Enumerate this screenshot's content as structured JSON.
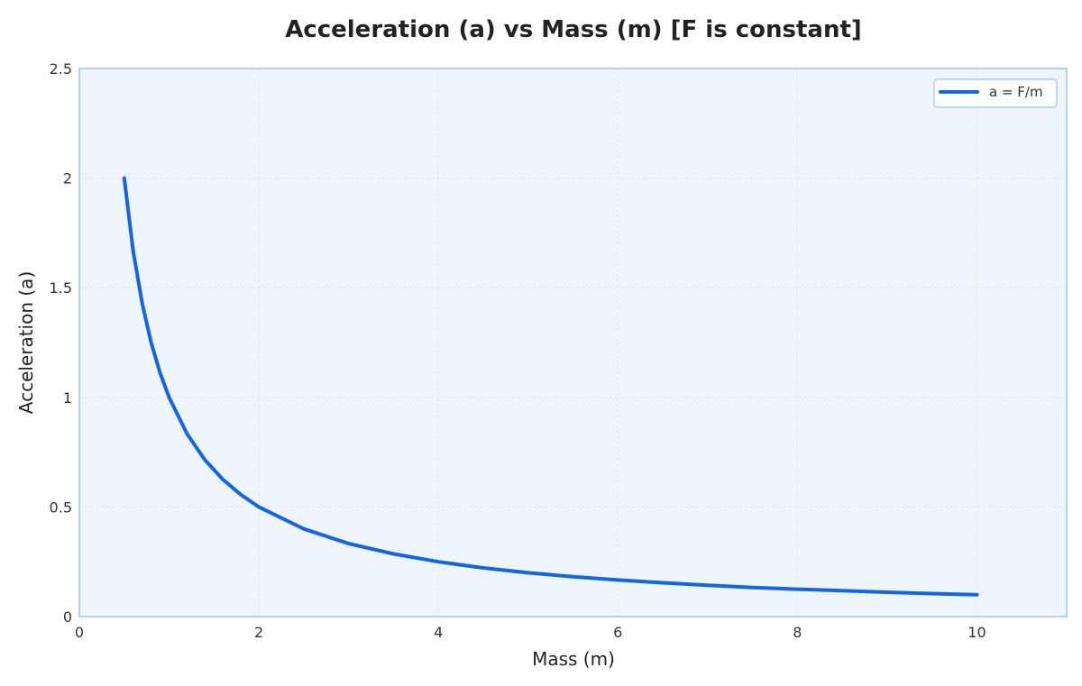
{
  "chart_data": {
    "type": "line",
    "title": "Acceleration (a) vs Mass (m) [F is constant]",
    "xlabel": "Mass (m)",
    "ylabel": "Acceleration (a)",
    "xlim": [
      0,
      11
    ],
    "ylim": [
      0,
      2.5
    ],
    "x_ticks": [
      0,
      2,
      4,
      6,
      8,
      10
    ],
    "y_ticks": [
      0,
      0.5,
      1,
      1.5,
      2,
      2.5
    ],
    "x_tick_labels": [
      "0",
      "2",
      "4",
      "6",
      "8",
      "10"
    ],
    "y_tick_labels": [
      "0",
      "0.5",
      "1",
      "1.5",
      "2",
      "2.5"
    ],
    "grid": true,
    "legend_position": "top-right",
    "series": [
      {
        "name": "a = F/m",
        "color": "#1565e0",
        "x": [
          0.5,
          0.6,
          0.7,
          0.8,
          0.9,
          1.0,
          1.2,
          1.4,
          1.6,
          1.8,
          2.0,
          2.5,
          3.0,
          3.5,
          4.0,
          4.5,
          5.0,
          5.5,
          6.0,
          6.5,
          7.0,
          7.5,
          8.0,
          8.5,
          9.0,
          9.5,
          10.0
        ],
        "y": [
          2.0,
          1.667,
          1.429,
          1.25,
          1.111,
          1.0,
          0.833,
          0.714,
          0.625,
          0.556,
          0.5,
          0.4,
          0.333,
          0.286,
          0.25,
          0.222,
          0.2,
          0.182,
          0.167,
          0.154,
          0.143,
          0.133,
          0.125,
          0.118,
          0.111,
          0.105,
          0.1
        ]
      }
    ]
  },
  "colors": {
    "plot_background": "#eef5fd",
    "plot_border": "#9ec0ee",
    "grid": "#dbe7f5"
  }
}
